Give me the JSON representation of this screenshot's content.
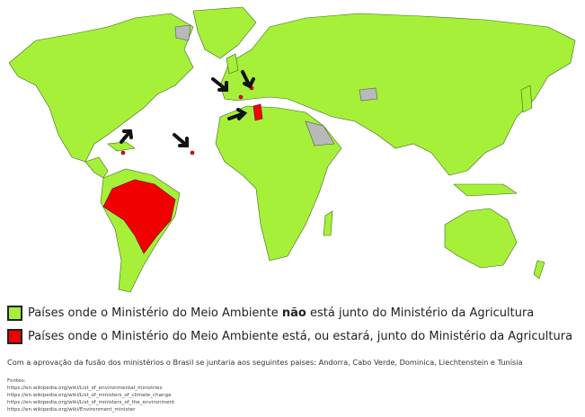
{
  "colors": {
    "not_joined": "#a6f03a",
    "joined": "#f00000",
    "no_data": "#b9b9b9"
  },
  "legend": [
    {
      "pre": "Países onde o Ministério do Meio Ambiente ",
      "bold": "não",
      "post": " está junto do Ministério da Agricultura"
    },
    {
      "pre": "Países onde o Ministério do Meio Ambiente ",
      "bold": "",
      "post": "está, ou estará, junto do Ministério da Agricultura"
    }
  ],
  "note": "Com a aprovação da fusão dos ministérios o Brasil se juntaria aos seguintes paises: Andorra, Cabo Verde, Dominica, Liechtenstein e Tunísia",
  "sources": {
    "title": "Fontes:",
    "links": [
      "https://en.wikipedia.org/wiki/List_of_environmental_ministries",
      "https://en.wikipedia.org/wiki/List_of_ministers_of_climate_change",
      "https://en.wikipedia.org/wiki/List_of_ministers_of_the_environment",
      "https://en.wikipedia.org/wiki/Environment_minister"
    ]
  },
  "highlighted_countries": [
    "Brasil",
    "Andorra",
    "Cabo Verde",
    "Dominica",
    "Liechtenstein",
    "Tunísia"
  ]
}
